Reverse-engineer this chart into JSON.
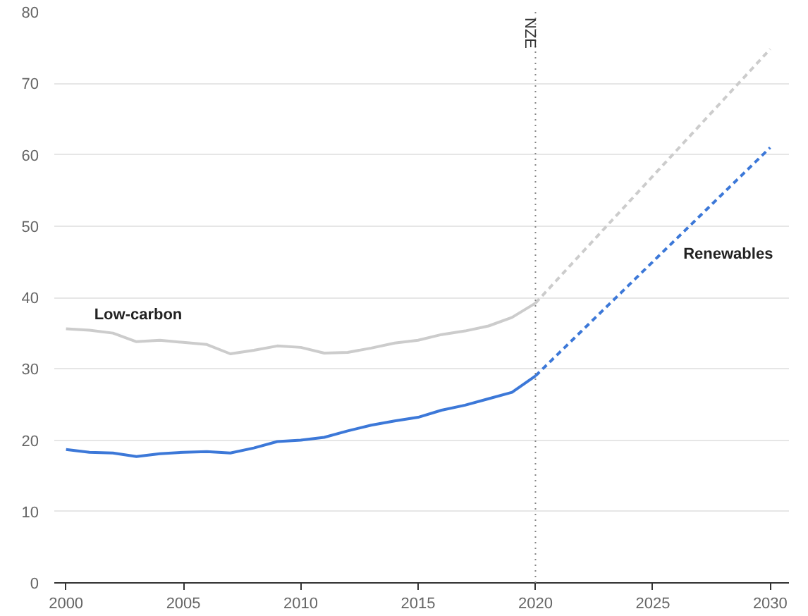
{
  "chart_data": {
    "type": "line",
    "xlim": [
      1999.5,
      2030.8
    ],
    "ylim": [
      0,
      80
    ],
    "xticks": [
      2000,
      2005,
      2010,
      2015,
      2020,
      2025,
      2030
    ],
    "yticks": [
      0,
      10,
      20,
      30,
      40,
      50,
      60,
      70,
      80
    ],
    "grid": "y",
    "series": [
      {
        "name": "Low-carbon",
        "color": "#cccccc",
        "line_style": "solid",
        "x": [
          2000,
          2001,
          2002,
          2003,
          2004,
          2005,
          2006,
          2007,
          2008,
          2009,
          2010,
          2011,
          2012,
          2013,
          2014,
          2015,
          2016,
          2017,
          2018,
          2019,
          2020
        ],
        "values": [
          35.6,
          35.4,
          35,
          33.8,
          34,
          33.7,
          33.4,
          32.1,
          32.6,
          33.2,
          33,
          32.2,
          32.3,
          32.9,
          33.6,
          34,
          34.8,
          35.3,
          36,
          37.2,
          39.2
        ]
      },
      {
        "color": "#cccccc",
        "line_style": "dashed",
        "x": [
          2020,
          2030
        ],
        "values": [
          39.2,
          74.8
        ]
      },
      {
        "color": "#3c78d8",
        "line_style": "solid",
        "x": [
          2000,
          2001,
          2002,
          2003,
          2004,
          2005,
          2006,
          2007,
          2008,
          2009,
          2010,
          2011,
          2012,
          2013,
          2014,
          2015,
          2016,
          2017,
          2018,
          2019,
          2020
        ],
        "values": [
          18.7,
          18.3,
          18.2,
          17.7,
          18.1,
          18.3,
          18.4,
          18.2,
          18.9,
          19.8,
          20,
          20.4,
          21.3,
          22.1,
          22.7,
          23.2,
          24.2,
          24.9,
          25.8,
          26.7,
          29
        ]
      },
      {
        "name": "Renewables",
        "color": "#3c78d8",
        "line_style": "dashed",
        "x": [
          2020,
          2030
        ],
        "values": [
          29,
          61
        ]
      }
    ],
    "ref_lines": [
      {
        "axis": "x",
        "value": 2020,
        "label": "NZE",
        "color": "#888888",
        "line_style": "dotted"
      }
    ]
  }
}
